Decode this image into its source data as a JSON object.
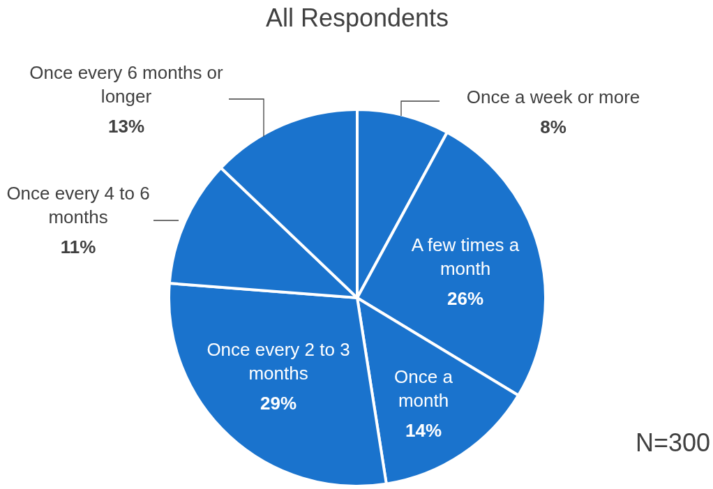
{
  "chart_data": {
    "type": "pie",
    "title": "All Respondents",
    "categories": [
      "Once a week or more",
      "A few times a month",
      "Once a month",
      "Once every 2 to 3 months",
      "Once every 4 to 6 months",
      "Once every 6 months or longer"
    ],
    "values": [
      8,
      26,
      14,
      29,
      11,
      13
    ],
    "colors": [
      "#1a73cd",
      "#1a73cd",
      "#1a73cd",
      "#1a73cd",
      "#1a73cd",
      "#1a73cd"
    ],
    "value_labels": [
      "8%",
      "26%",
      "14%",
      "29%",
      "11%",
      "13%"
    ],
    "annotations": [
      "N=300"
    ],
    "legend": false
  }
}
